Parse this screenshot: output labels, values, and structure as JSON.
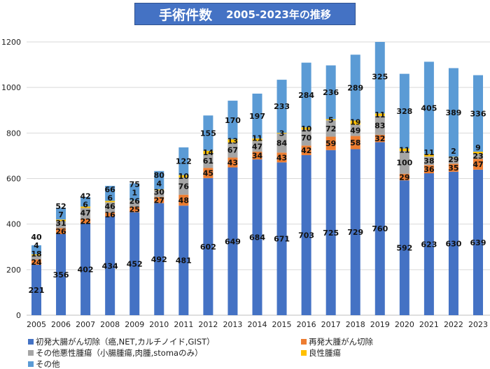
{
  "chart_data": {
    "type": "bar",
    "stacked": true,
    "title": "手術件数",
    "subtitle": "2005-2023年の推移",
    "xlabel": "",
    "ylabel": "",
    "ylim": [
      0,
      1200
    ],
    "yticks": [
      0,
      200,
      400,
      600,
      800,
      1000,
      1200
    ],
    "grid": true,
    "legend_position": "bottom",
    "categories": [
      "2005",
      "2006",
      "2007",
      "2008",
      "2009",
      "2010",
      "2011",
      "2012",
      "2013",
      "2014",
      "2015",
      "2016",
      "2017",
      "2018",
      "2019",
      "2020",
      "2021",
      "2022",
      "2023"
    ],
    "series": [
      {
        "name": "初発大腸がん切除（癌,NET,カルチノイド,GIST）",
        "color": "#4472C4",
        "values": [
          221,
          356,
          402,
          434,
          452,
          492,
          481,
          602,
          649,
          684,
          671,
          703,
          725,
          729,
          760,
          592,
          623,
          630,
          639
        ]
      },
      {
        "name": "再発大腫がん切除",
        "color": "#ED7D31",
        "values": [
          24,
          26,
          22,
          16,
          25,
          27,
          48,
          45,
          43,
          34,
          43,
          42,
          59,
          58,
          32,
          29,
          36,
          35,
          47
        ]
      },
      {
        "name": "その他悪性腫瘍（小腸腫瘍,肉腫,stomaのみ）",
        "color": "#A5A5A5",
        "values": [
          18,
          31,
          47,
          46,
          26,
          30,
          76,
          61,
          67,
          47,
          84,
          70,
          72,
          49,
          83,
          100,
          38,
          29,
          23
        ]
      },
      {
        "name": "良性腫瘍",
        "color": "#FFC000",
        "values": [
          4,
          7,
          6,
          6,
          1,
          4,
          10,
          14,
          13,
          11,
          3,
          10,
          5,
          19,
          11,
          11,
          11,
          2,
          9
        ]
      },
      {
        "name": "その他",
        "color": "#5B9BD5",
        "values": [
          40,
          52,
          42,
          66,
          75,
          80,
          122,
          155,
          170,
          197,
          233,
          284,
          236,
          289,
          325,
          328,
          405,
          389,
          336
        ]
      }
    ]
  }
}
